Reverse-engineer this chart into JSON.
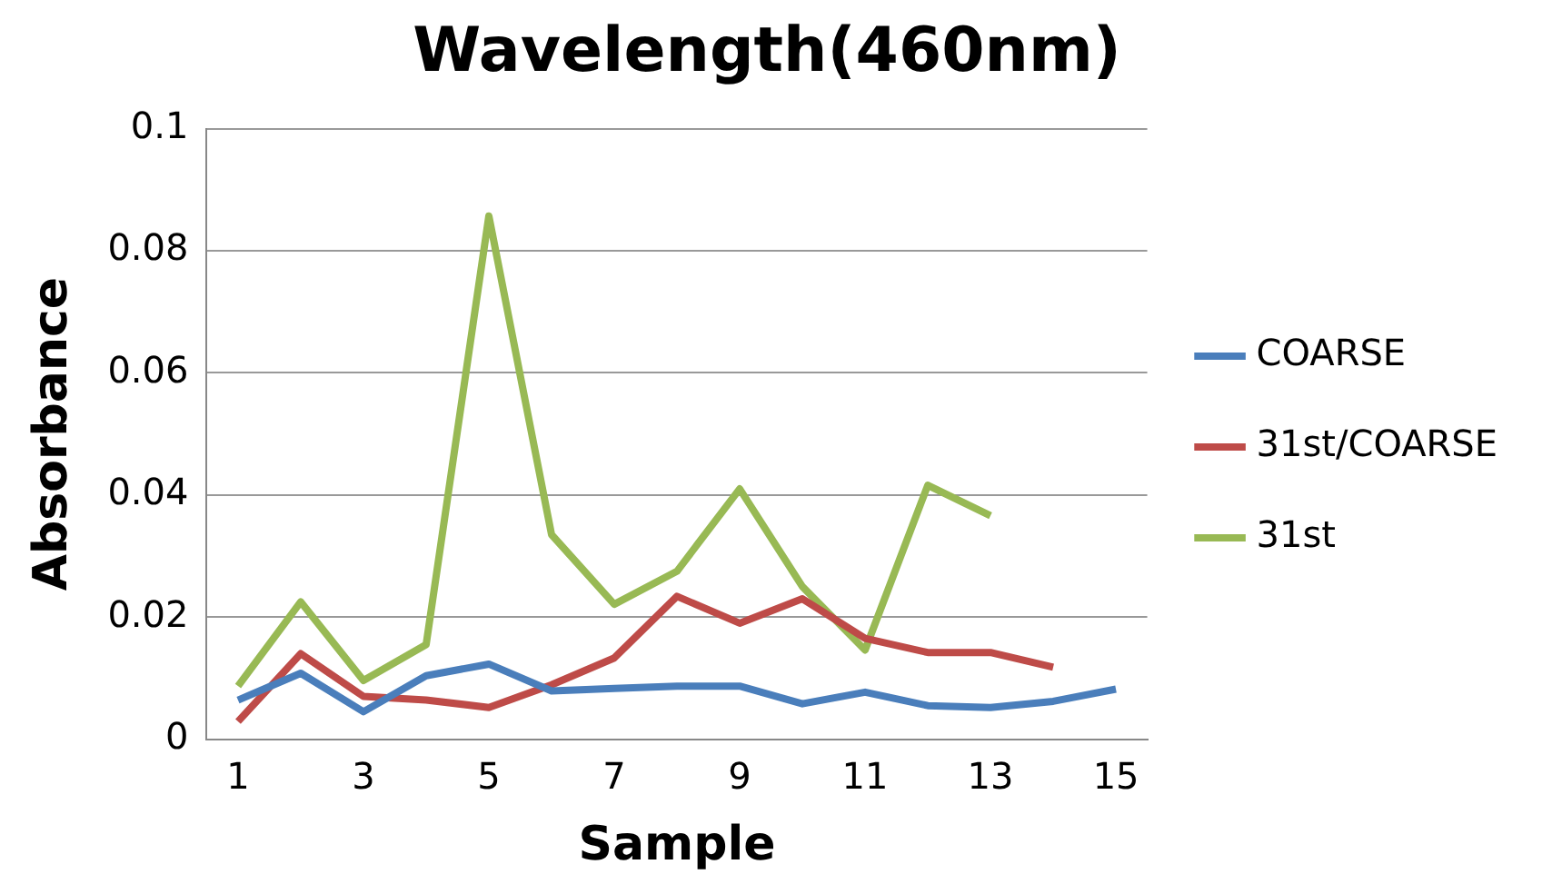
{
  "chart_data": {
    "type": "line",
    "title": "Wavelength(460nm)",
    "xlabel": "Sample",
    "ylabel": "Absorbance",
    "x": [
      1,
      2,
      3,
      4,
      5,
      6,
      7,
      8,
      9,
      10,
      11,
      12,
      13,
      14,
      15
    ],
    "xlim": [
      0.5,
      15.5
    ],
    "xticks": [
      1,
      3,
      5,
      7,
      9,
      11,
      13,
      15
    ],
    "series": [
      {
        "name": "COARSE",
        "color": "#4a7ebb",
        "values": [
          0.0064,
          0.0108,
          0.0045,
          0.0104,
          0.0123,
          0.0079,
          0.0083,
          0.0087,
          0.0087,
          0.0058,
          0.0077,
          0.0055,
          0.0052,
          0.0062,
          0.0082
        ]
      },
      {
        "name": "31st/COARSE",
        "color": "#be4b48",
        "values": [
          0.0029,
          0.014,
          0.007,
          0.0064,
          0.0052,
          0.0089,
          0.0133,
          0.0234,
          0.019,
          0.023,
          0.0165,
          0.0142,
          0.0142,
          0.0118,
          null
        ]
      },
      {
        "name": "31st",
        "color": "#98b954",
        "values": [
          0.0087,
          0.0225,
          0.0096,
          0.0155,
          0.0857,
          0.0335,
          0.0221,
          0.0275,
          0.041,
          0.025,
          0.0146,
          0.0416,
          0.0366,
          null,
          null
        ]
      }
    ],
    "ylim": [
      0,
      0.1
    ],
    "yticks": [
      0,
      0.02,
      0.04,
      0.06,
      0.08,
      0.1
    ],
    "grid": "y",
    "legend": "right",
    "marker": "none",
    "line_style": "solid"
  }
}
